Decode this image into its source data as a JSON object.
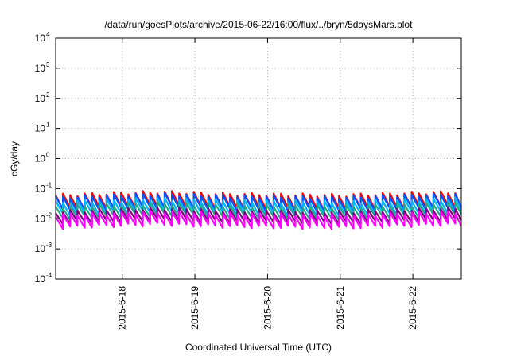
{
  "chart_data": {
    "type": "line",
    "title": "/data/run/goesPlots/archive/2015-06-22/16:00/flux/../bryn/5daysMars.plot",
    "xlabel": "Coordinated Universal Time (UTC)",
    "ylabel": "cGy/day",
    "yscale": "log",
    "ylim": [
      0.0001,
      10000
    ],
    "xlim": [
      "2015-06-17 02:00",
      "2015-06-22 16:00"
    ],
    "grid": true,
    "y_ticks": [
      {
        "base": "10",
        "exp": "-4"
      },
      {
        "base": "10",
        "exp": "-3"
      },
      {
        "base": "10",
        "exp": "-2"
      },
      {
        "base": "10",
        "exp": "-1"
      },
      {
        "base": "10",
        "exp": "0"
      },
      {
        "base": "10",
        "exp": "1"
      },
      {
        "base": "10",
        "exp": "2"
      },
      {
        "base": "10",
        "exp": "3"
      },
      {
        "base": "10",
        "exp": "4"
      }
    ],
    "x_ticks": [
      {
        "label": "2015-6-18",
        "date": "2015-06-18 00:00"
      },
      {
        "label": "2015-6-19",
        "date": "2015-06-19 00:00"
      },
      {
        "label": "2015-6-20",
        "date": "2015-06-20 00:00"
      },
      {
        "label": "2015-6-21",
        "date": "2015-06-21 00:00"
      },
      {
        "label": "2015-6-22",
        "date": "2015-06-22 00:00"
      }
    ],
    "sawtooth_period_hours": 2.4,
    "series": [
      {
        "color": "#ff0000",
        "low": 0.02,
        "high": 0.06,
        "notes": "rising to 0.15 on 2015-6-22"
      },
      {
        "color": "#0055ff",
        "low": 0.018,
        "high": 0.05
      },
      {
        "color": "#00b4ff",
        "low": 0.013,
        "high": 0.035
      },
      {
        "color": "#22aa88",
        "low": 0.01,
        "high": 0.025
      },
      {
        "color": "#800080",
        "low": 0.007,
        "high": 0.017
      },
      {
        "color": "#ff00ff",
        "low": 0.005,
        "high": 0.013
      }
    ],
    "series_drift": [
      {
        "date": "2015-06-17 02:00",
        "factor": 1.0
      },
      {
        "date": "2015-06-18 12:00",
        "factor": 1.3
      },
      {
        "date": "2015-06-19 12:00",
        "factor": 1.1
      },
      {
        "date": "2015-06-21 00:00",
        "factor": 1.0
      },
      {
        "date": "2015-06-22 16:00",
        "factor": 1.3
      }
    ]
  }
}
